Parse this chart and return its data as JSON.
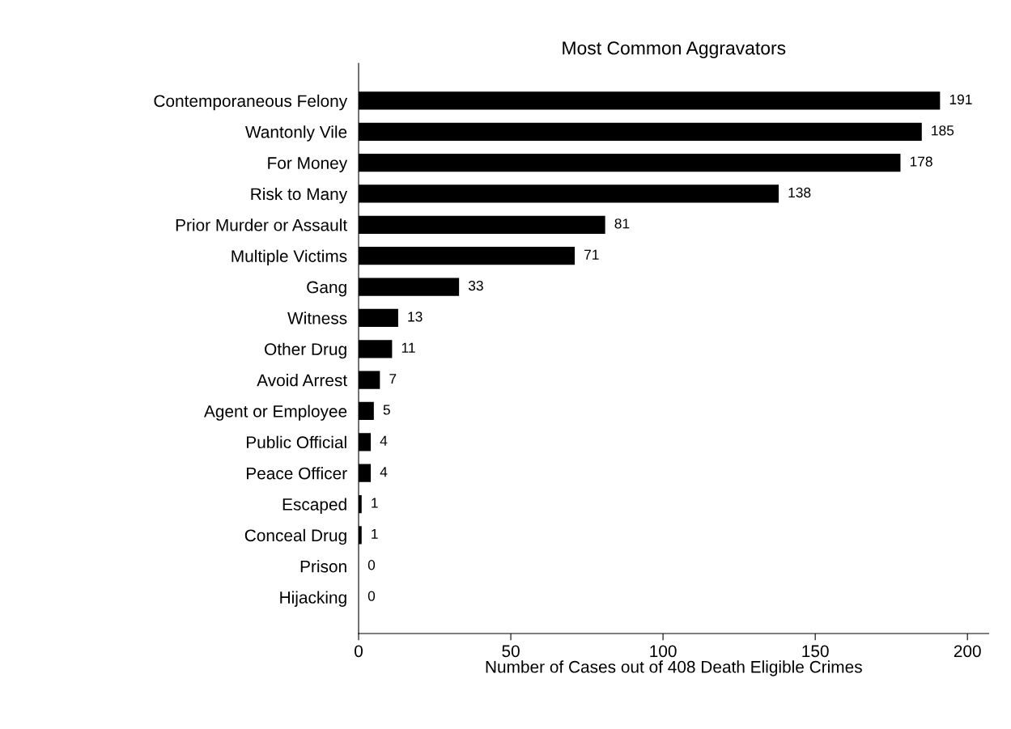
{
  "chart_data": {
    "type": "bar",
    "orientation": "horizontal",
    "title": "Most Common Aggravators",
    "xlabel": "Number of Cases out of 408 Death Eligible Crimes",
    "categories": [
      "Contemporaneous Felony",
      "Wantonly Vile",
      "For Money",
      "Risk to Many",
      "Prior Murder or Assault",
      "Multiple Victims",
      "Gang",
      "Witness",
      "Other Drug",
      "Avoid Arrest",
      "Agent or Employee",
      "Public Official",
      "Peace Officer",
      "Escaped",
      "Conceal Drug",
      "Prison",
      "Hijacking"
    ],
    "values": [
      191,
      185,
      178,
      138,
      81,
      71,
      33,
      13,
      11,
      7,
      5,
      4,
      4,
      1,
      1,
      0,
      0
    ],
    "color": "#000000",
    "xlim": [
      0,
      207
    ],
    "xticks": [
      0,
      50,
      100,
      150,
      200
    ],
    "data_labels": true,
    "grid": false,
    "legend": false
  }
}
